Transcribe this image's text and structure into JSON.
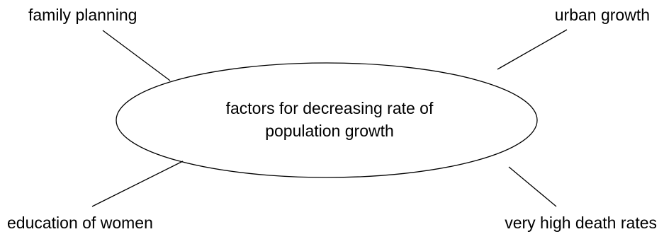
{
  "diagram": {
    "center": {
      "line1": "factors for decreasing rate of",
      "line2": "population growth"
    },
    "factors": {
      "top_left": "family planning",
      "top_right": "urban growth",
      "bottom_left": "education of women",
      "bottom_right": "very high death rates"
    },
    "colors": {
      "stroke": "#000000",
      "background": "#ffffff"
    }
  }
}
